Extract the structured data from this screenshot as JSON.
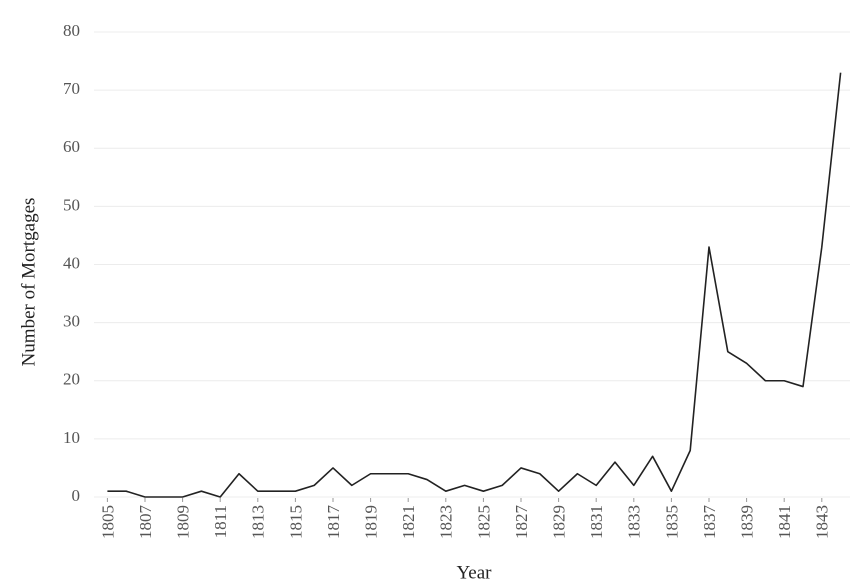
{
  "chart_data": {
    "type": "line",
    "x_label": "Year",
    "y_label": "Number of Mortgages",
    "x": [
      1805,
      1806,
      1807,
      1808,
      1809,
      1810,
      1811,
      1812,
      1813,
      1814,
      1815,
      1816,
      1817,
      1818,
      1819,
      1820,
      1821,
      1822,
      1823,
      1824,
      1825,
      1826,
      1827,
      1828,
      1829,
      1830,
      1831,
      1832,
      1833,
      1834,
      1835,
      1836,
      1837,
      1838,
      1839,
      1840,
      1841,
      1842,
      1843,
      1844
    ],
    "values": [
      1,
      1,
      0,
      0,
      0,
      1,
      0,
      4,
      1,
      1,
      1,
      2,
      5,
      2,
      4,
      4,
      4,
      3,
      1,
      2,
      1,
      2,
      5,
      4,
      1,
      4,
      2,
      6,
      2,
      7,
      1,
      8,
      43,
      25,
      23,
      20,
      20,
      19,
      43,
      73
    ],
    "color": "#222222",
    "xlim": [
      1804.5,
      1844.5
    ],
    "xticks": [
      1805,
      1807,
      1809,
      1811,
      1813,
      1815,
      1817,
      1819,
      1821,
      1823,
      1825,
      1827,
      1829,
      1831,
      1833,
      1835,
      1837,
      1839,
      1841,
      1843
    ],
    "ylim": [
      0,
      80
    ],
    "yticks": [
      0,
      10,
      20,
      30,
      40,
      50,
      60,
      70,
      80
    ],
    "grid": true
  }
}
